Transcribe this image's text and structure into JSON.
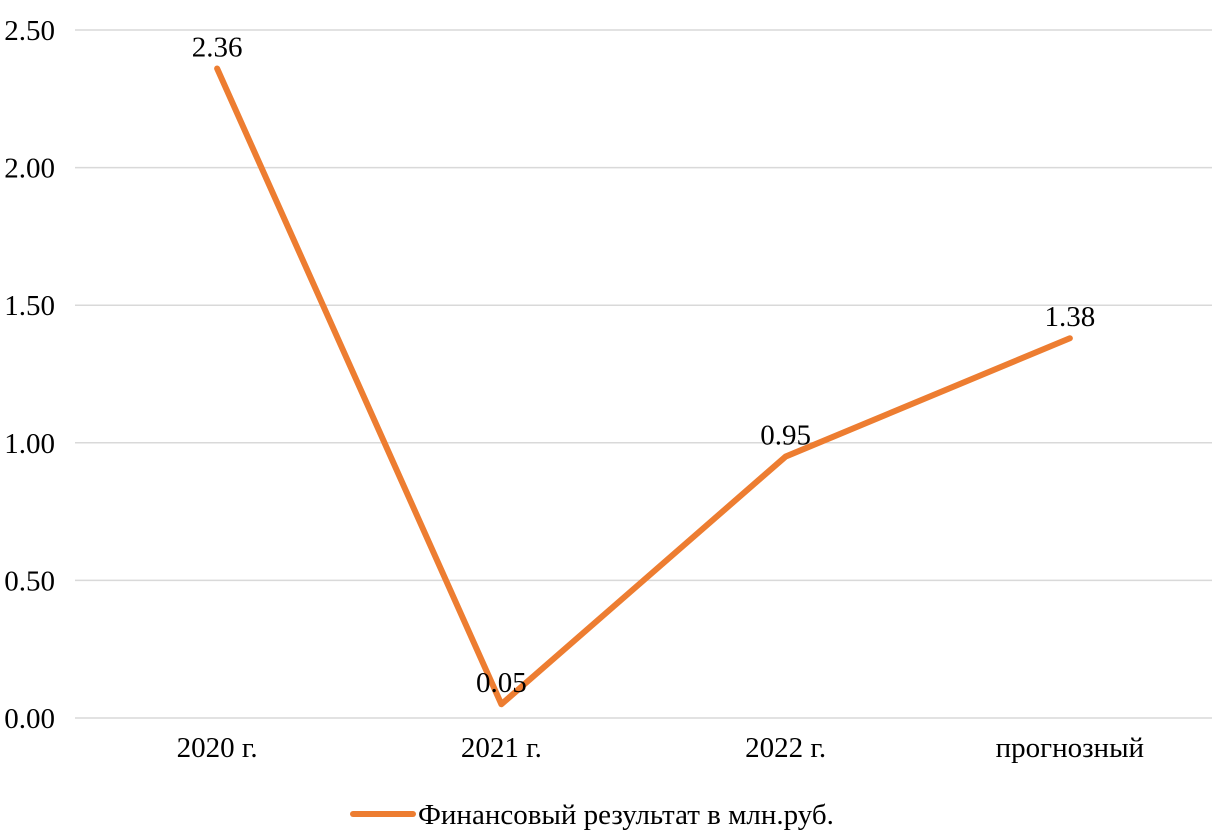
{
  "chart_data": {
    "type": "line",
    "categories": [
      "2020 г.",
      "2021 г.",
      "2022 г.",
      "прогнозный"
    ],
    "series": [
      {
        "name": "Финансовый результат в млн.руб.",
        "values": [
          2.36,
          0.05,
          0.95,
          1.38
        ],
        "color": "#ED7D31"
      }
    ],
    "data_labels": [
      "2.36",
      "0.05",
      "0.95",
      "1.38"
    ],
    "y_ticks": [
      "0.00",
      "0.50",
      "1.00",
      "1.50",
      "2.00",
      "2.50"
    ],
    "ylim": [
      0,
      2.5
    ],
    "grid": true,
    "gridline_color": "#D9D9D9",
    "legend_position": "bottom",
    "title": "",
    "xlabel": "",
    "ylabel": ""
  }
}
